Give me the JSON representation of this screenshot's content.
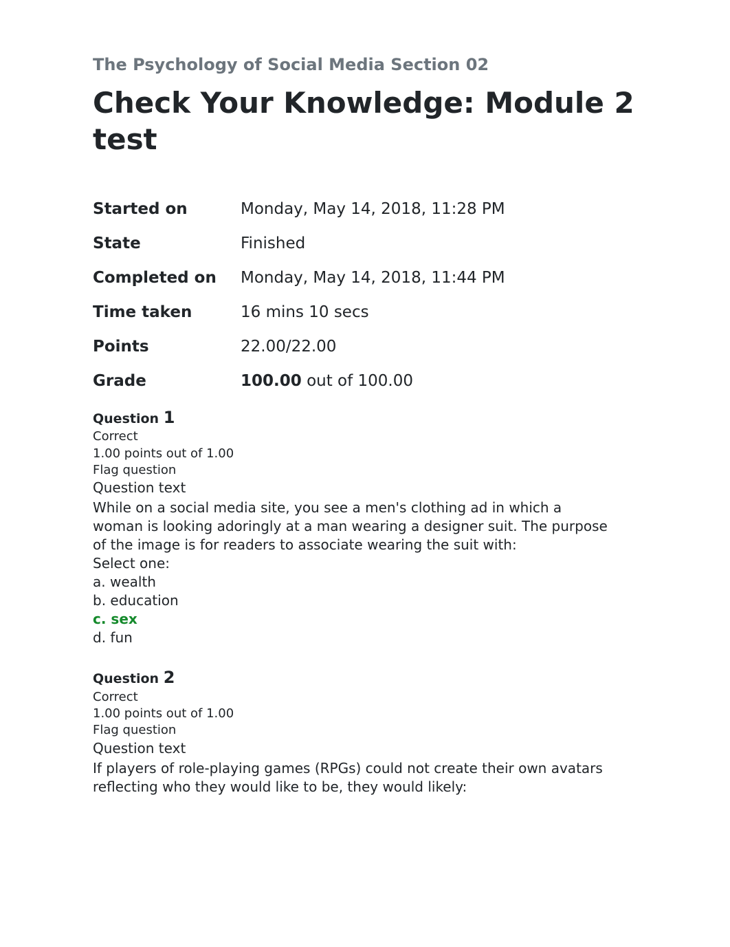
{
  "colors": {
    "text": "#212529",
    "muted": "#6c757d",
    "correct": "#158a2c",
    "background": "#ffffff"
  },
  "header": {
    "course_title": "The Psychology of Social Media Section 02",
    "page_title": "Check Your Knowledge: Module 2 test"
  },
  "summary": {
    "rows": [
      {
        "label": "Started on",
        "value": "Monday, May 14, 2018, 11:28 PM"
      },
      {
        "label": "State",
        "value": "Finished"
      },
      {
        "label": "Completed on",
        "value": "Monday, May 14, 2018, 11:44 PM"
      },
      {
        "label": "Time taken",
        "value": "16 mins 10 secs"
      },
      {
        "label": "Points",
        "value": "22.00/22.00"
      }
    ],
    "grade_label": "Grade",
    "grade_bold": "100.00",
    "grade_rest": " out of 100.00"
  },
  "questions": [
    {
      "q_label": "Question",
      "number": "1",
      "status": "Correct",
      "points": "1.00 points out of 1.00",
      "flag": "Flag question",
      "qt_label": "Question text",
      "text": "While on a social media site, you see a men's clothing ad in which a woman is looking adoringly at a man wearing a designer suit. The purpose of the image is for readers to associate wearing the suit with:",
      "select_one": "Select one:",
      "options": [
        {
          "text": "a. wealth",
          "correct": false
        },
        {
          "text": "b. education",
          "correct": false
        },
        {
          "text": "c. sex",
          "correct": true
        },
        {
          "text": "d. fun",
          "correct": false
        }
      ]
    },
    {
      "q_label": "Question",
      "number": "2",
      "status": "Correct",
      "points": "1.00 points out of 1.00",
      "flag": "Flag question",
      "qt_label": "Question text",
      "text": "If players of role-playing games (RPGs) could not create their own avatars reflecting who they would like to be, they would likely:",
      "select_one": "",
      "options": []
    }
  ]
}
